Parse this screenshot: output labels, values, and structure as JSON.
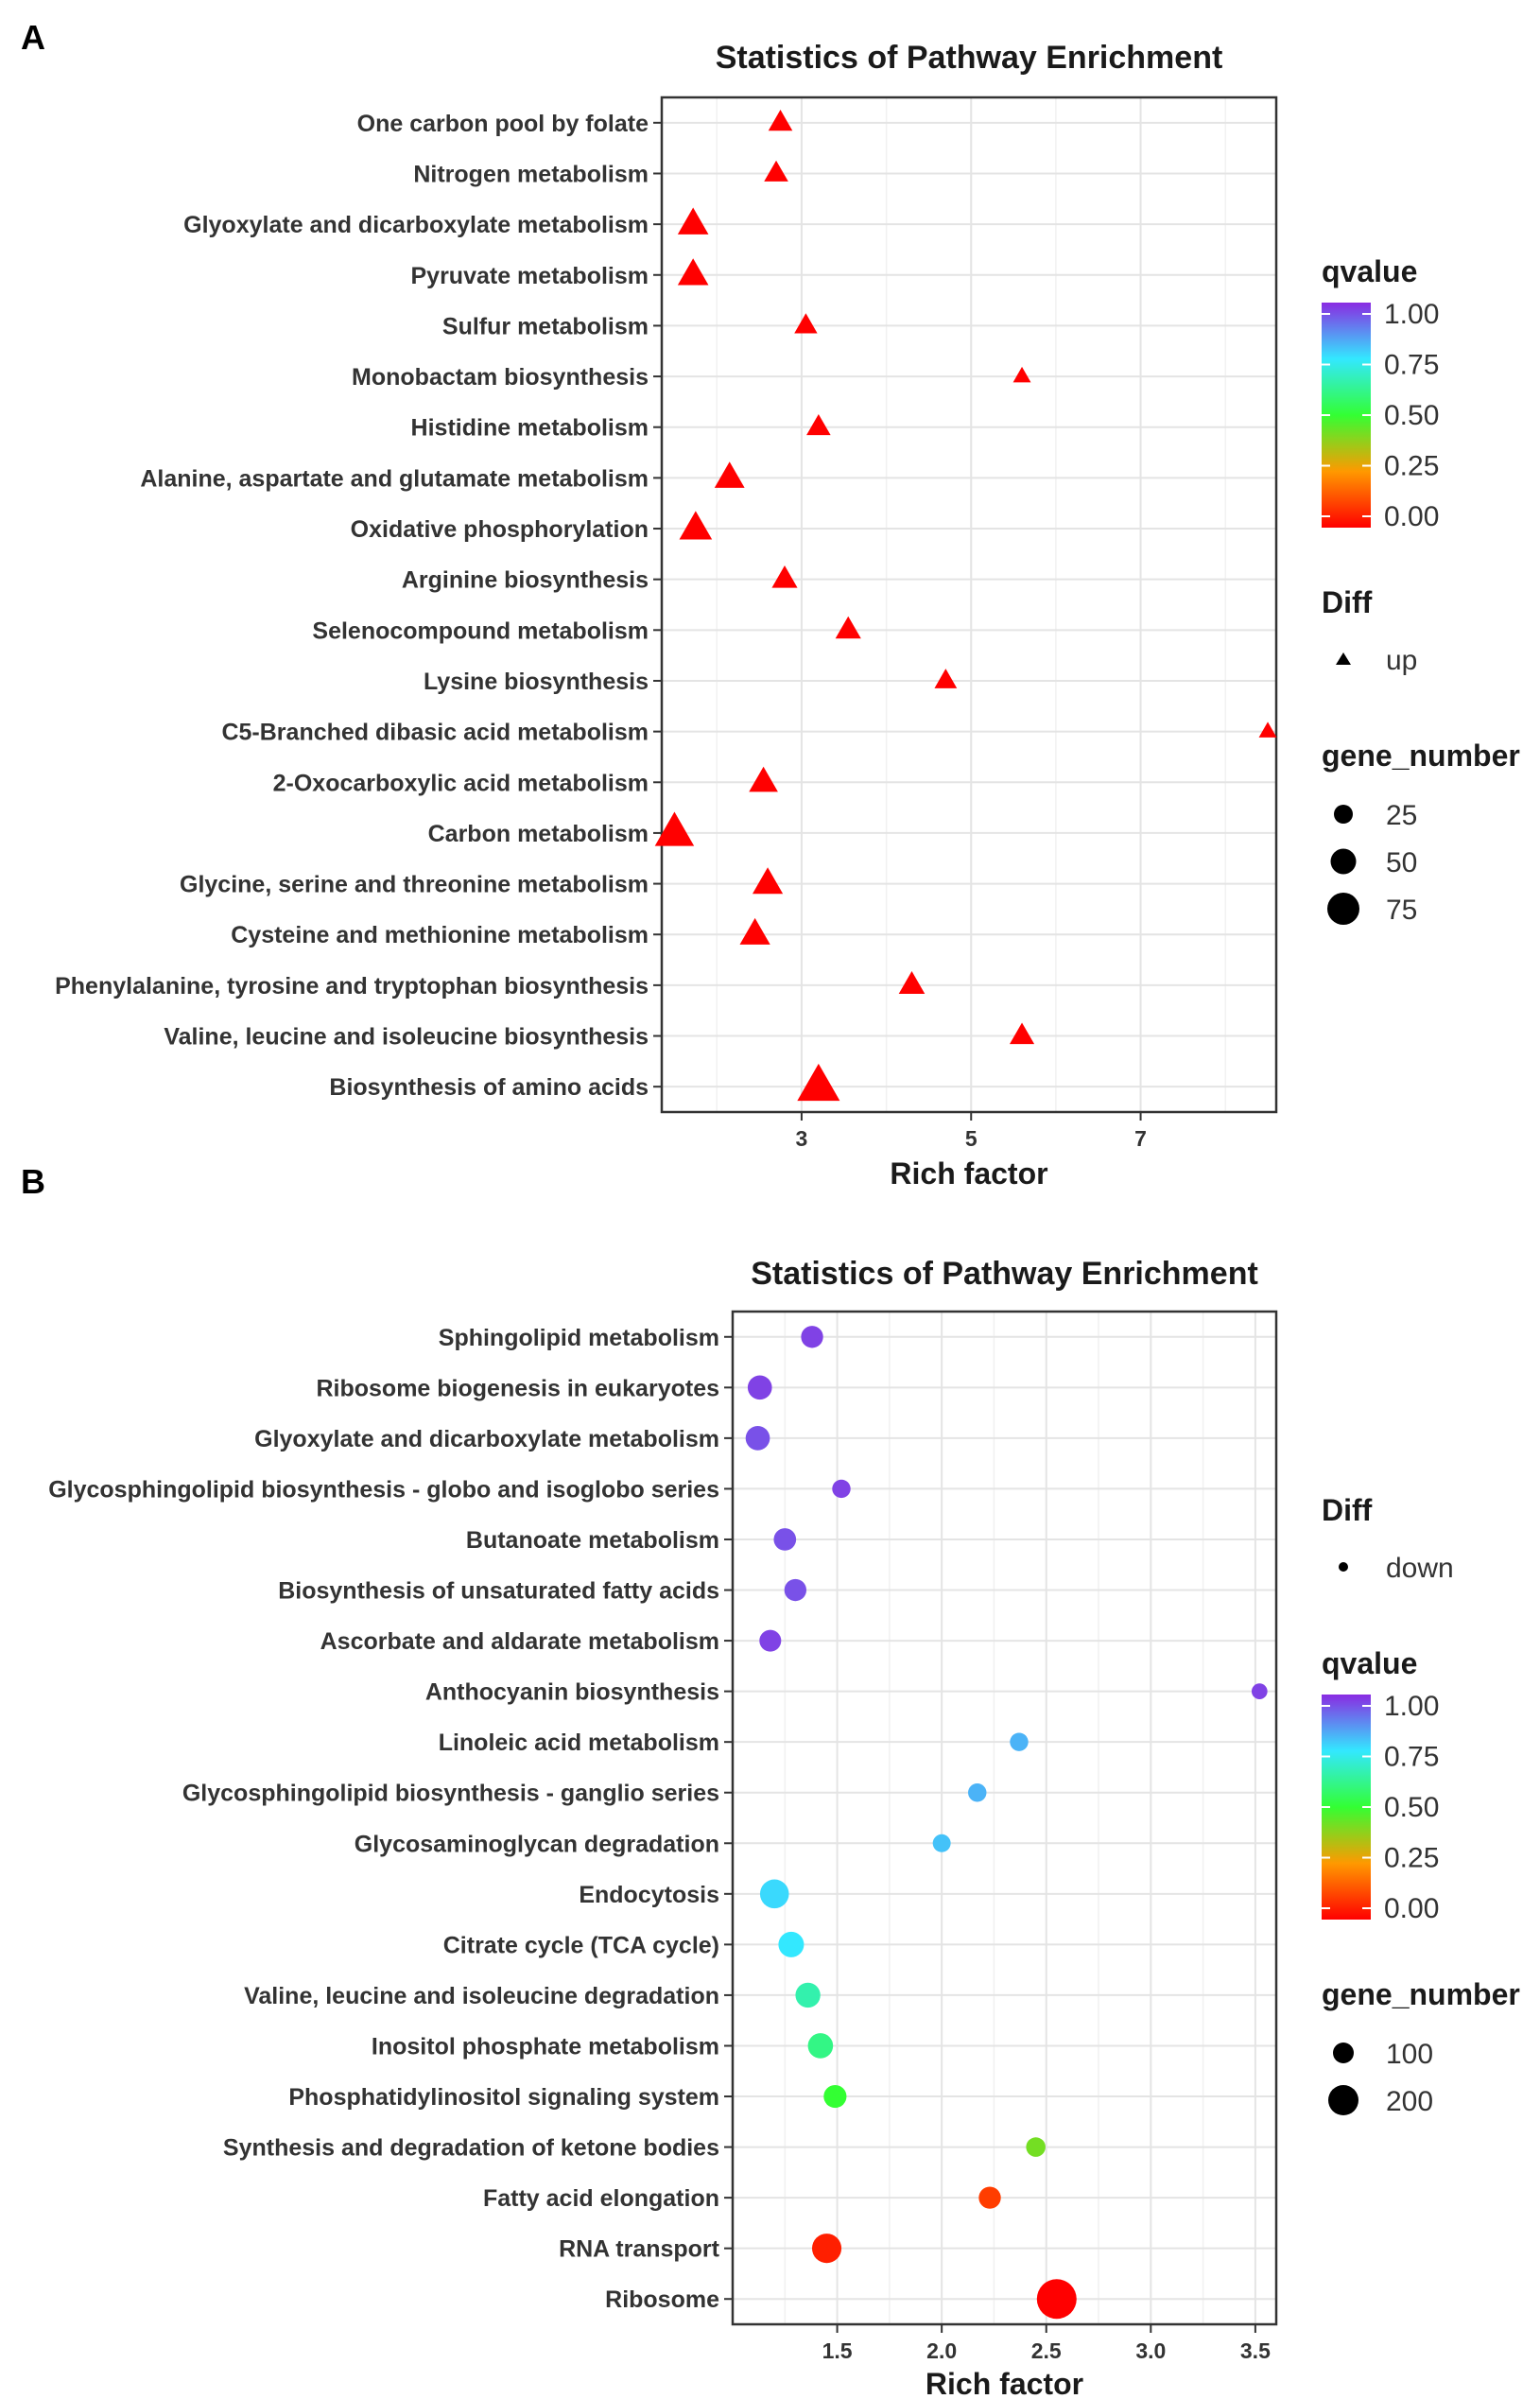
{
  "figure": {
    "panel_a_label": "A",
    "panel_b_label": "B"
  },
  "chart_data": [
    {
      "type": "scatter",
      "panel": "A",
      "title": "Statistics of Pathway Enrichment",
      "xlabel": "Rich factor",
      "ylabel": "",
      "xlim": [
        1.35,
        8.6
      ],
      "xticks": [
        3,
        5,
        7
      ],
      "xtick_labels": [
        "3",
        "5",
        "7"
      ],
      "marker": "triangle",
      "categories": [
        "One carbon pool by folate",
        "Nitrogen metabolism",
        "Glyoxylate and dicarboxylate metabolism",
        "Pyruvate metabolism",
        "Sulfur metabolism",
        "Monobactam biosynthesis",
        "Histidine metabolism",
        "Alanine, aspartate and glutamate metabolism",
        "Oxidative phosphorylation",
        "Arginine biosynthesis",
        "Selenocompound metabolism",
        "Lysine biosynthesis",
        "C5-Branched dibasic acid metabolism",
        "2-Oxocarboxylic acid metabolism",
        "Carbon metabolism",
        "Glycine, serine and threonine metabolism",
        "Cysteine and methionine metabolism",
        "Phenylalanine, tyrosine and tryptophan biosynthesis",
        "Valine, leucine and isoleucine biosynthesis",
        "Biosynthesis of amino acids"
      ],
      "rich_factor": [
        2.75,
        2.7,
        1.72,
        1.72,
        3.05,
        5.6,
        3.2,
        2.15,
        1.75,
        2.8,
        3.55,
        4.7,
        8.5,
        2.55,
        1.5,
        2.6,
        2.45,
        4.3,
        5.6,
        3.2
      ],
      "gene_number": [
        12,
        12,
        28,
        28,
        10,
        3,
        12,
        26,
        34,
        15,
        15,
        9,
        3,
        23,
        58,
        27,
        27,
        16,
        13,
        73
      ],
      "qvalue": [
        0.0,
        0.0,
        0.0,
        0.0,
        0.0,
        0.0,
        0.0,
        0.0,
        0.0,
        0.0,
        0.0,
        0.0,
        0.0,
        0.0,
        0.0,
        0.0,
        0.0,
        0.0,
        0.0,
        0.0
      ],
      "legend": {
        "qvalue_title": "qvalue",
        "qvalue_ticks": [
          "1.00",
          "0.75",
          "0.50",
          "0.25",
          "0.00"
        ],
        "diff_title": "Diff",
        "diff_label": "up",
        "size_title": "gene_number",
        "size_values": [
          25,
          50,
          75
        ],
        "size_labels": [
          "25",
          "50",
          "75"
        ],
        "order": [
          "qvalue",
          "diff",
          "size"
        ]
      }
    },
    {
      "type": "scatter",
      "panel": "B",
      "title": "Statistics of Pathway Enrichment",
      "xlabel": "Rich factor",
      "ylabel": "",
      "xlim": [
        1.0,
        3.6
      ],
      "xticks": [
        1.5,
        2.0,
        2.5,
        3.0,
        3.5
      ],
      "xtick_labels": [
        "1.5",
        "2.0",
        "2.5",
        "3.0",
        "3.5"
      ],
      "marker": "circle",
      "categories": [
        "Sphingolipid metabolism",
        "Ribosome biogenesis in eukaryotes",
        "Glyoxylate and dicarboxylate metabolism",
        "Glycosphingolipid biosynthesis - globo and isoglobo series",
        "Butanoate metabolism",
        "Biosynthesis of unsaturated fatty acids",
        "Ascorbate and aldarate metabolism",
        "Anthocyanin biosynthesis",
        "Linoleic acid metabolism",
        "Glycosphingolipid biosynthesis - ganglio series",
        "Glycosaminoglycan degradation",
        "Endocytosis",
        "Citrate cycle (TCA cycle)",
        "Valine, leucine and isoleucine degradation",
        "Inositol phosphate metabolism",
        "Phosphatidylinositol signaling system",
        "Synthesis and degradation of ketone bodies",
        "Fatty acid elongation",
        "RNA transport",
        "Ribosome"
      ],
      "rich_factor": [
        1.38,
        1.13,
        1.12,
        1.52,
        1.25,
        1.3,
        1.18,
        3.52,
        2.37,
        2.17,
        2.0,
        1.2,
        1.28,
        1.36,
        1.42,
        1.49,
        2.45,
        2.23,
        1.45,
        2.55
      ],
      "gene_number": [
        40,
        55,
        55,
        20,
        42,
        40,
        38,
        10,
        20,
        20,
        18,
        95,
        65,
        60,
        62,
        45,
        25,
        40,
        100,
        230
      ],
      "qvalue": [
        0.97,
        0.97,
        0.95,
        0.97,
        0.95,
        0.95,
        0.97,
        0.97,
        0.82,
        0.82,
        0.8,
        0.77,
        0.75,
        0.65,
        0.6,
        0.5,
        0.42,
        0.1,
        0.05,
        0.0
      ],
      "legend": {
        "qvalue_title": "qvalue",
        "qvalue_ticks": [
          "1.00",
          "0.75",
          "0.50",
          "0.25",
          "0.00"
        ],
        "diff_title": "Diff",
        "diff_label": "down",
        "size_title": "gene_number",
        "size_values": [
          100,
          200
        ],
        "size_labels": [
          "100",
          "200"
        ],
        "order": [
          "diff",
          "qvalue",
          "size"
        ]
      }
    }
  ]
}
